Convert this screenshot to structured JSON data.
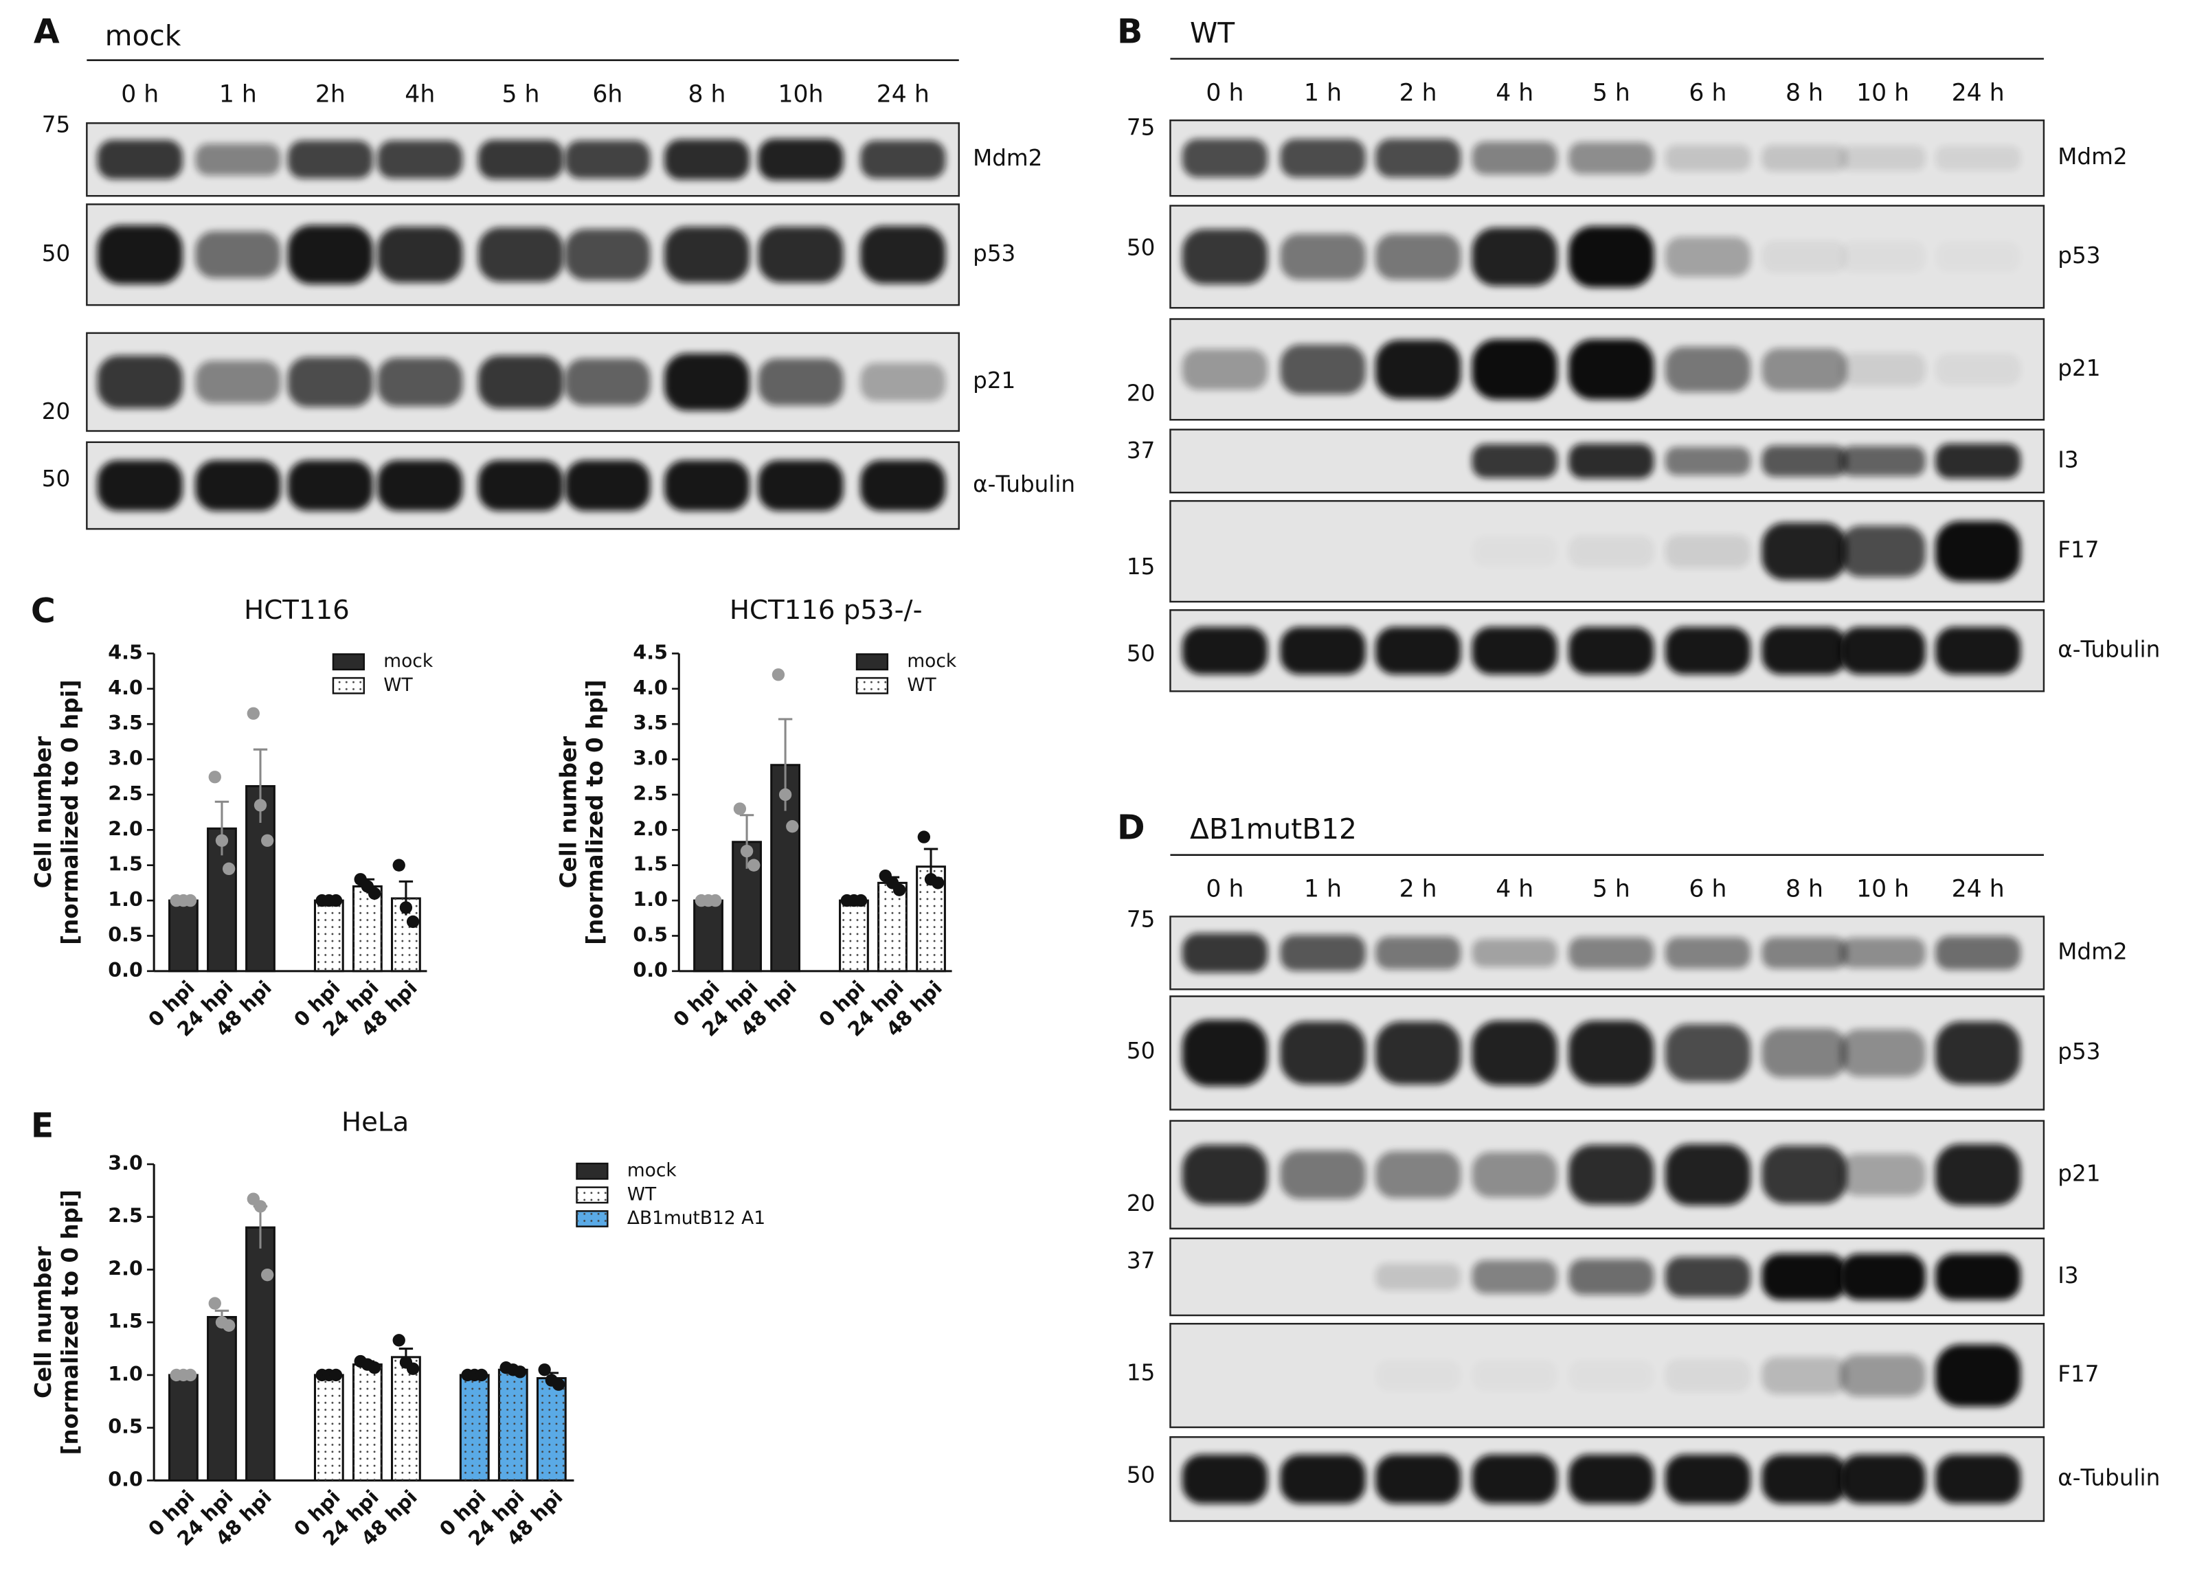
{
  "panel_labels": [
    "A",
    "B",
    "C",
    "D",
    "E"
  ],
  "blots": [
    {
      "title": "mock",
      "lanes": [
        "0 h",
        "1 h",
        "2h",
        "4h",
        "5 h",
        "6h",
        "8 h",
        "10h",
        "24 h"
      ],
      "rows": [
        {
          "label": "Mdm2",
          "marker": 75,
          "intensity": [
            0.8,
            0.45,
            0.75,
            0.75,
            0.8,
            0.75,
            0.85,
            0.9,
            0.75
          ]
        },
        {
          "label": "p53",
          "marker": 50,
          "intensity": [
            0.95,
            0.55,
            0.95,
            0.85,
            0.8,
            0.7,
            0.85,
            0.85,
            0.9
          ]
        },
        {
          "label": "p21",
          "marker": 20,
          "intensity": [
            0.8,
            0.45,
            0.7,
            0.65,
            0.8,
            0.6,
            0.95,
            0.6,
            0.3
          ]
        },
        {
          "label": "α-Tubulin",
          "marker": 50,
          "intensity": [
            0.95,
            0.95,
            0.95,
            0.95,
            0.95,
            0.95,
            0.95,
            0.95,
            0.95
          ]
        }
      ]
    },
    {
      "title": "WT",
      "lanes": [
        "0 h",
        "1 h",
        "2 h",
        "4 h",
        "5 h",
        "6 h",
        "8 h",
        "10 h",
        "24 h"
      ],
      "rows": [
        {
          "label": "Mdm2",
          "marker": 75,
          "intensity": [
            0.7,
            0.7,
            0.7,
            0.45,
            0.4,
            0.15,
            0.15,
            0.1,
            0.08
          ]
        },
        {
          "label": "p53",
          "marker": 50,
          "intensity": [
            0.8,
            0.5,
            0.5,
            0.9,
            1,
            0.3,
            0.05,
            0.03,
            0.02
          ]
        },
        {
          "label": "p21",
          "marker": 20,
          "intensity": [
            0.35,
            0.65,
            0.95,
            1,
            1,
            0.5,
            0.4,
            0.1,
            0.05
          ]
        },
        {
          "label": "I3",
          "marker": 37,
          "intensity": [
            0,
            0,
            0,
            0.8,
            0.85,
            0.5,
            0.65,
            0.6,
            0.85
          ]
        },
        {
          "label": "F17",
          "marker": 15,
          "intensity": [
            0,
            0,
            0,
            0.02,
            0.05,
            0.1,
            0.9,
            0.7,
            1
          ]
        },
        {
          "label": "α-Tubulin",
          "marker": 50,
          "intensity": [
            0.95,
            0.95,
            0.95,
            0.95,
            0.95,
            0.95,
            0.95,
            0.95,
            0.95
          ]
        }
      ]
    },
    {
      "title": "ΔB1mutB12",
      "lanes": [
        "0 h",
        "1 h",
        "2 h",
        "4 h",
        "5 h",
        "6 h",
        "8 h",
        "10 h",
        "24 h"
      ],
      "rows": [
        {
          "label": "Mdm2",
          "marker": 75,
          "intensity": [
            0.8,
            0.65,
            0.5,
            0.3,
            0.45,
            0.45,
            0.45,
            0.4,
            0.55
          ]
        },
        {
          "label": "p53",
          "marker": 50,
          "intensity": [
            0.95,
            0.85,
            0.85,
            0.9,
            0.9,
            0.7,
            0.45,
            0.4,
            0.85
          ]
        },
        {
          "label": "p21",
          "marker": 20,
          "intensity": [
            0.85,
            0.5,
            0.45,
            0.4,
            0.85,
            0.9,
            0.8,
            0.3,
            0.9
          ]
        },
        {
          "label": "I3",
          "marker": 37,
          "intensity": [
            0,
            0,
            0.15,
            0.45,
            0.55,
            0.75,
            1,
            1,
            1
          ]
        },
        {
          "label": "F17",
          "marker": 15,
          "intensity": [
            0,
            0,
            0.02,
            0.02,
            0.02,
            0.05,
            0.2,
            0.35,
            1
          ]
        },
        {
          "label": "α-Tubulin",
          "marker": 50,
          "intensity": [
            0.95,
            0.95,
            0.95,
            0.95,
            0.95,
            0.95,
            0.95,
            0.95,
            0.95
          ]
        }
      ]
    }
  ],
  "chart_data": [
    {
      "type": "bar",
      "title": "HCT116",
      "ylabel": [
        "Cell number",
        "[normalized to 0 hpi]"
      ],
      "categories": [
        "0 hpi",
        "24 hpi",
        "48 hpi"
      ],
      "series": [
        {
          "name": "mock",
          "color": "#2b2b2b",
          "values": [
            1,
            2.02,
            2.62
          ],
          "errors": [
            0.02,
            0.38,
            0.52
          ],
          "points": [
            [
              1,
              1,
              1
            ],
            [
              2.75,
              1.85,
              1.45
            ],
            [
              3.65,
              2.35,
              1.85
            ]
          ]
        },
        {
          "name": "WT",
          "color": "#ffffff",
          "pattern": "dots",
          "values": [
            1,
            1.2,
            1.03
          ],
          "errors": [
            0.02,
            0.1,
            0.24
          ],
          "points": [
            [
              1,
              1,
              1
            ],
            [
              1.3,
              1.2,
              1.1
            ],
            [
              1.5,
              0.9,
              0.7
            ]
          ]
        }
      ],
      "ylim": [
        0,
        4.5
      ],
      "yticks": [
        {
          "value": 0,
          "label": "0.0"
        },
        0.5,
        {
          "value": 1,
          "label": "1.0"
        },
        1.5,
        {
          "value": 2,
          "label": "2.0"
        },
        2.5,
        {
          "value": 3,
          "label": "3.0"
        },
        3.5,
        {
          "value": 4,
          "label": "4.0"
        },
        4.5
      ]
    },
    {
      "type": "bar",
      "title": "HCT116 p53-/-",
      "ylabel": [
        "Cell number",
        "[normalized to 0 hpi]"
      ],
      "categories": [
        "0 hpi",
        "24 hpi",
        "48 hpi"
      ],
      "series": [
        {
          "name": "mock",
          "color": "#2b2b2b",
          "values": [
            1,
            1.83,
            2.92
          ],
          "errors": [
            0.02,
            0.38,
            0.65
          ],
          "points": [
            [
              1,
              1,
              1
            ],
            [
              2.3,
              1.7,
              1.5
            ],
            [
              4.2,
              2.5,
              2.05
            ]
          ]
        },
        {
          "name": "WT",
          "color": "#ffffff",
          "pattern": "dots",
          "values": [
            1,
            1.25,
            1.48
          ],
          "errors": [
            0.02,
            0.08,
            0.25
          ],
          "points": [
            [
              1,
              1,
              1
            ],
            [
              1.35,
              1.25,
              1.15
            ],
            [
              1.9,
              1.3,
              1.25
            ]
          ]
        }
      ],
      "ylim": [
        0,
        4.5
      ],
      "yticks": [
        {
          "value": 0,
          "label": "0.0"
        },
        0.5,
        {
          "value": 1,
          "label": "1.0"
        },
        1.5,
        {
          "value": 2,
          "label": "2.0"
        },
        2.5,
        {
          "value": 3,
          "label": "3.0"
        },
        3.5,
        {
          "value": 4,
          "label": "4.0"
        },
        4.5
      ]
    },
    {
      "type": "bar",
      "title": "HeLa",
      "ylabel": [
        "Cell number",
        "[normalized to 0 hpi]"
      ],
      "categories": [
        "0 hpi",
        "24 hpi",
        "48 hpi"
      ],
      "series": [
        {
          "name": "mock",
          "color": "#2b2b2b",
          "values": [
            1,
            1.55,
            2.4
          ],
          "errors": [
            0.02,
            0.06,
            0.2
          ],
          "points": [
            [
              1,
              1,
              1
            ],
            [
              1.68,
              1.5,
              1.47
            ],
            [
              2.67,
              2.6,
              1.95
            ]
          ]
        },
        {
          "name": "WT",
          "color": "#ffffff",
          "pattern": "dots",
          "values": [
            1,
            1.1,
            1.17
          ],
          "errors": [
            0.02,
            0.03,
            0.08
          ],
          "points": [
            [
              1,
              1,
              1
            ],
            [
              1.13,
              1.1,
              1.07
            ],
            [
              1.33,
              1.12,
              1.06
            ]
          ]
        },
        {
          "name": "ΔB1mutB12 A1",
          "color": "#5aaae6",
          "pattern": "dots",
          "values": [
            1,
            1.05,
            0.97
          ],
          "errors": [
            0.01,
            0.02,
            0.05
          ],
          "points": [
            [
              1,
              1,
              1
            ],
            [
              1.07,
              1.05,
              1.03
            ],
            [
              1.05,
              0.95,
              0.91
            ]
          ]
        }
      ],
      "ylim": [
        0,
        3
      ],
      "yticks": [
        {
          "value": 0,
          "label": "0.0"
        },
        0.5,
        {
          "value": 1,
          "label": "1.0"
        },
        1.5,
        {
          "value": 2,
          "label": "2.0"
        },
        2.5,
        {
          "value": 3,
          "label": "3.0"
        }
      ]
    }
  ]
}
